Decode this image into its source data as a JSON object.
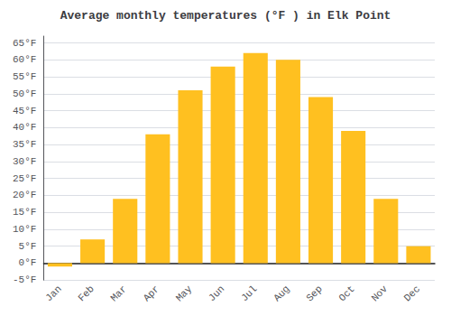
{
  "chart_data": {
    "type": "bar",
    "title": "Average monthly temperatures (°F ) in Elk Point",
    "categories": [
      "Jan",
      "Feb",
      "Mar",
      "Apr",
      "May",
      "Jun",
      "Jul",
      "Aug",
      "Sep",
      "Oct",
      "Nov",
      "Dec"
    ],
    "values": [
      -1,
      7,
      19,
      38,
      51,
      58,
      62,
      60,
      49,
      39,
      19,
      5
    ],
    "color": "#FFC020",
    "ylim": [
      -5,
      67
    ],
    "yticks": [
      {
        "value": -5,
        "label": "-5°F"
      },
      {
        "value": 0,
        "label": "0°F"
      },
      {
        "value": 5,
        "label": "5°F"
      },
      {
        "value": 10,
        "label": "10°F"
      },
      {
        "value": 15,
        "label": "15°F"
      },
      {
        "value": 20,
        "label": "20°F"
      },
      {
        "value": 25,
        "label": "25°F"
      },
      {
        "value": 30,
        "label": "30°F"
      },
      {
        "value": 35,
        "label": "35°F"
      },
      {
        "value": 40,
        "label": "40°F"
      },
      {
        "value": 45,
        "label": "45°F"
      },
      {
        "value": 50,
        "label": "50°F"
      },
      {
        "value": 55,
        "label": "55°F"
      },
      {
        "value": 60,
        "label": "60°F"
      },
      {
        "value": 65,
        "label": "65°F"
      }
    ],
    "grid": true
  }
}
